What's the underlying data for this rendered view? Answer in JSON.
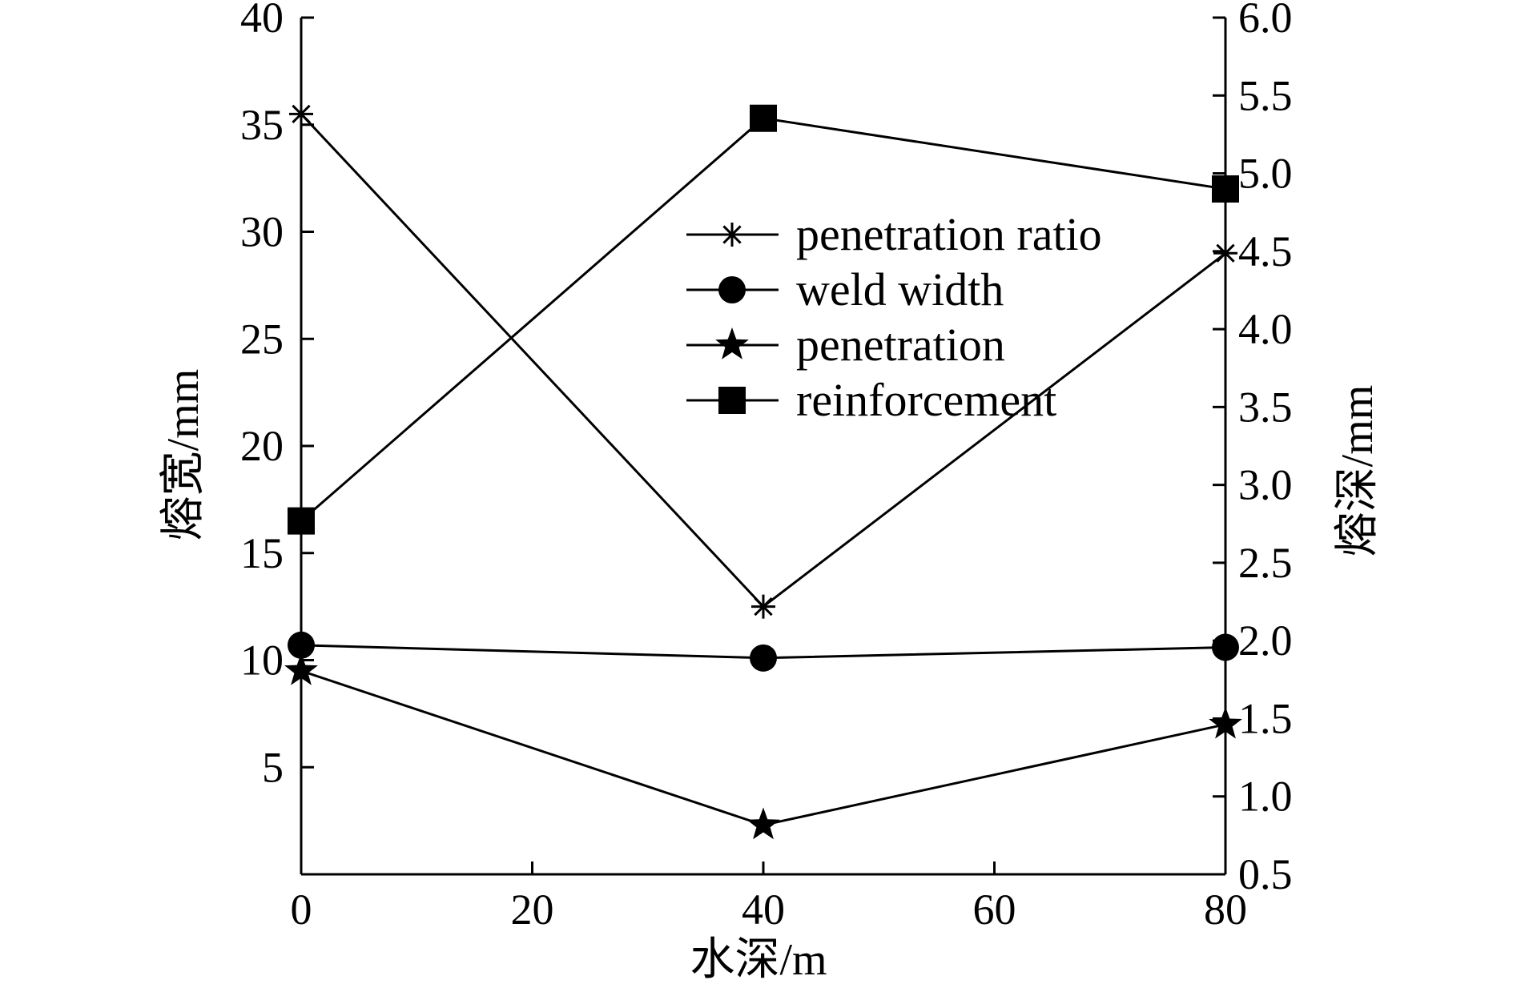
{
  "chart_data": {
    "type": "line",
    "x_axis": {
      "label": "水深/m",
      "range": [
        0,
        80
      ],
      "ticks": [
        0,
        20,
        40,
        60,
        80
      ]
    },
    "y_left": {
      "label": "熔宽/mm",
      "range": [
        0,
        40
      ],
      "ticks": [
        5,
        10,
        15,
        20,
        25,
        30,
        35,
        40
      ]
    },
    "y_right": {
      "label": "熔深/mm",
      "range": [
        0.5,
        6.0
      ],
      "ticks": [
        "0.5",
        "1.0",
        "1.5",
        "2.0",
        "2.5",
        "3.0",
        "3.5",
        "4.0",
        "4.5",
        "5.0",
        "5.5",
        "6.0"
      ]
    },
    "legend_position": "upper-middle",
    "series": [
      {
        "name": "penetration ratio",
        "marker": "asterisk",
        "x": [
          0,
          40,
          80
        ],
        "y": [
          35.5,
          12.5,
          29.0
        ]
      },
      {
        "name": "weld width",
        "marker": "circle",
        "x": [
          0,
          40,
          80
        ],
        "y": [
          10.7,
          10.1,
          10.6
        ]
      },
      {
        "name": "penetration",
        "marker": "star",
        "x": [
          0,
          40,
          80
        ],
        "y": [
          9.5,
          2.3,
          7.0
        ]
      },
      {
        "name": "reinforcement",
        "marker": "square",
        "x": [
          0,
          40,
          80
        ],
        "y": [
          16.5,
          35.3,
          32.0
        ]
      }
    ]
  }
}
